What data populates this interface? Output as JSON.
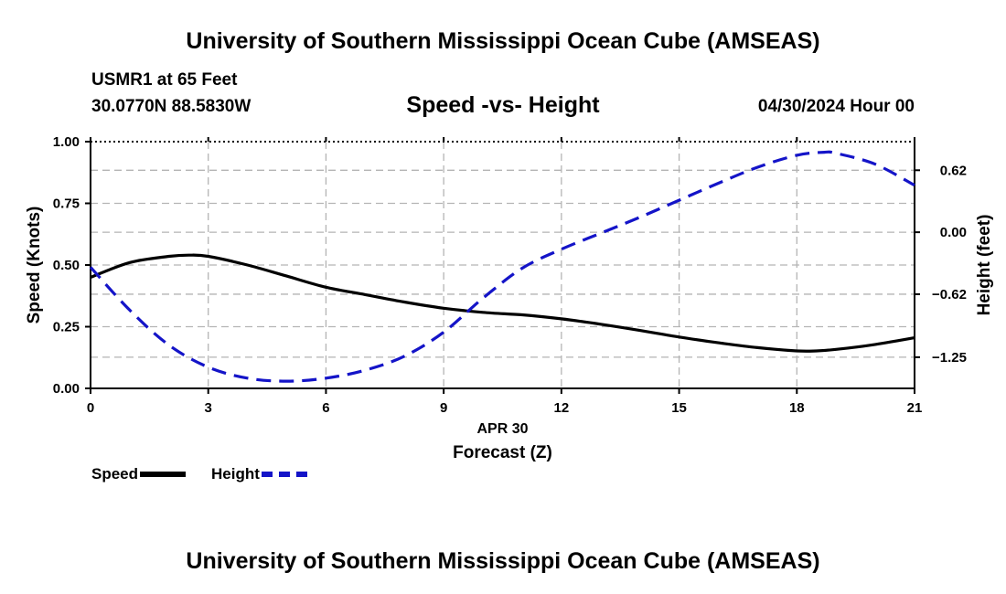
{
  "header": {
    "title": "University of Southern Mississippi Ocean Cube (AMSEAS)",
    "station": "USMR1 at 65 Feet",
    "coords": "30.0770N  88.5830W",
    "subtitle": "Speed -vs- Height",
    "date": "04/30/2024 Hour 00"
  },
  "footer": {
    "title": "University of Southern Mississippi Ocean Cube (AMSEAS)"
  },
  "legend": {
    "speed_label": "Speed",
    "height_label": "Height"
  },
  "chart_data": {
    "type": "line",
    "title": "Speed -vs- Height",
    "xlabel": "Forecast (Z)",
    "xsublabel": "APR 30",
    "ylabel": "Speed (Knots)",
    "y2label": "Height (feet)",
    "xlim": [
      0,
      21
    ],
    "ylim": [
      0,
      1
    ],
    "y2lim": [
      -1.562,
      0.906
    ],
    "x_ticks": [
      0,
      3,
      6,
      9,
      12,
      15,
      18,
      21
    ],
    "x_tick_labels": [
      "0",
      "3",
      "6",
      "9",
      "12",
      "15",
      "18",
      "21"
    ],
    "y_ticks": [
      0,
      0.25,
      0.5,
      0.75,
      1.0
    ],
    "y_tick_labels": [
      "0.00",
      "0.25",
      "0.50",
      "0.75",
      "1.00"
    ],
    "y2_ticks": [
      0.62,
      0.0,
      -0.62,
      -1.25
    ],
    "y2_tick_labels": [
      "0.62",
      "0.00",
      "−0.62",
      "−1.25"
    ],
    "grid": true,
    "series": [
      {
        "name": "Speed",
        "axis": "left",
        "color": "#000000",
        "style": "solid",
        "x": [
          0,
          1,
          2,
          2.5,
          3,
          4,
          5,
          6,
          7,
          8,
          9,
          10,
          11,
          12,
          13,
          14,
          15,
          16,
          17,
          18,
          18.5,
          19,
          20,
          21
        ],
        "values": [
          0.45,
          0.51,
          0.535,
          0.54,
          0.535,
          0.5,
          0.455,
          0.41,
          0.38,
          0.35,
          0.325,
          0.308,
          0.298,
          0.282,
          0.26,
          0.235,
          0.208,
          0.185,
          0.165,
          0.152,
          0.152,
          0.158,
          0.178,
          0.205
        ]
      },
      {
        "name": "Height",
        "axis": "right",
        "color": "#1414c8",
        "style": "dashed",
        "x": [
          0,
          1,
          2,
          3,
          4,
          5,
          6,
          7,
          8,
          9,
          10,
          11,
          12,
          13,
          14,
          15,
          16,
          17,
          18,
          18.7,
          19,
          20,
          21
        ],
        "values": [
          -0.35,
          -0.78,
          -1.13,
          -1.35,
          -1.46,
          -1.49,
          -1.46,
          -1.38,
          -1.24,
          -1.0,
          -0.66,
          -0.36,
          -0.17,
          -0.01,
          0.15,
          0.32,
          0.49,
          0.65,
          0.77,
          0.8,
          0.79,
          0.68,
          0.47
        ]
      }
    ]
  }
}
